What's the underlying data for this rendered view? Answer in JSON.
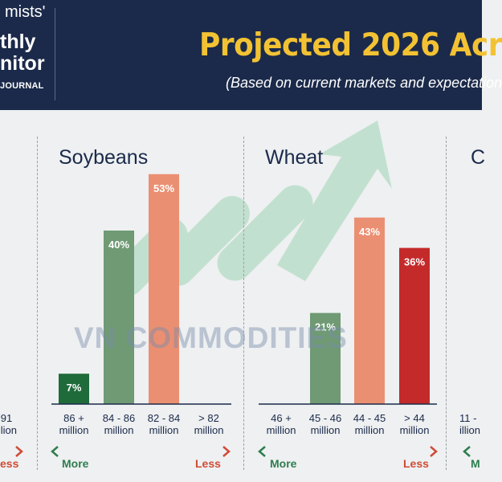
{
  "header": {
    "logo_lines": [
      "mists'",
      "thly",
      "nitor",
      "JOURNAL"
    ],
    "title": "Projected 2026 Acr",
    "subtitle": "(Based on current markets and expectation"
  },
  "watermark": "VN COMMODITIES",
  "colors": {
    "header_bg": "#1b2a4a",
    "title": "#f3c233",
    "dark_green": "#1f6b3a",
    "green": "#6f9a74",
    "salmon": "#eb8f72",
    "red": "#c42a2a",
    "more": "#2e7d4f",
    "less": "#d04a36"
  },
  "left_partial": {
    "category_lines": [
      "91",
      "illion"
    ],
    "scale_right": "ess"
  },
  "right_partial": {
    "title": "C",
    "category_lines": [
      "11 -",
      "illion"
    ],
    "scale_left": "M"
  },
  "scale": {
    "more": "More",
    "less": "Less"
  },
  "chart_data": [
    {
      "type": "bar",
      "title": "Soybeans",
      "categories": [
        "86 + million",
        "84 - 86 million",
        "82 - 84 million",
        "> 82 million"
      ],
      "category_lines": [
        [
          "86 +",
          "million"
        ],
        [
          "84 - 86",
          "million"
        ],
        [
          "82 - 84",
          "million"
        ],
        [
          "> 82",
          "million"
        ]
      ],
      "values": [
        7,
        40,
        53,
        null
      ],
      "labels": [
        "7%",
        "40%",
        "53%",
        ""
      ],
      "colors": [
        "#1f6b3a",
        "#6f9a74",
        "#eb8f72",
        "#c42a2a"
      ],
      "ylim": [
        0,
        55
      ]
    },
    {
      "type": "bar",
      "title": "Wheat",
      "categories": [
        "46 + million",
        "45 - 46 million",
        "44 - 45 million",
        "> 44 million"
      ],
      "category_lines": [
        [
          "46 +",
          "million"
        ],
        [
          "45 - 46",
          "million"
        ],
        [
          "44 - 45",
          "million"
        ],
        [
          "> 44",
          "million"
        ]
      ],
      "values": [
        null,
        21,
        43,
        36
      ],
      "labels": [
        "",
        "21%",
        "43%",
        "36%"
      ],
      "colors": [
        "#1f6b3a",
        "#6f9a74",
        "#eb8f72",
        "#c42a2a"
      ],
      "ylim": [
        0,
        55
      ]
    }
  ]
}
